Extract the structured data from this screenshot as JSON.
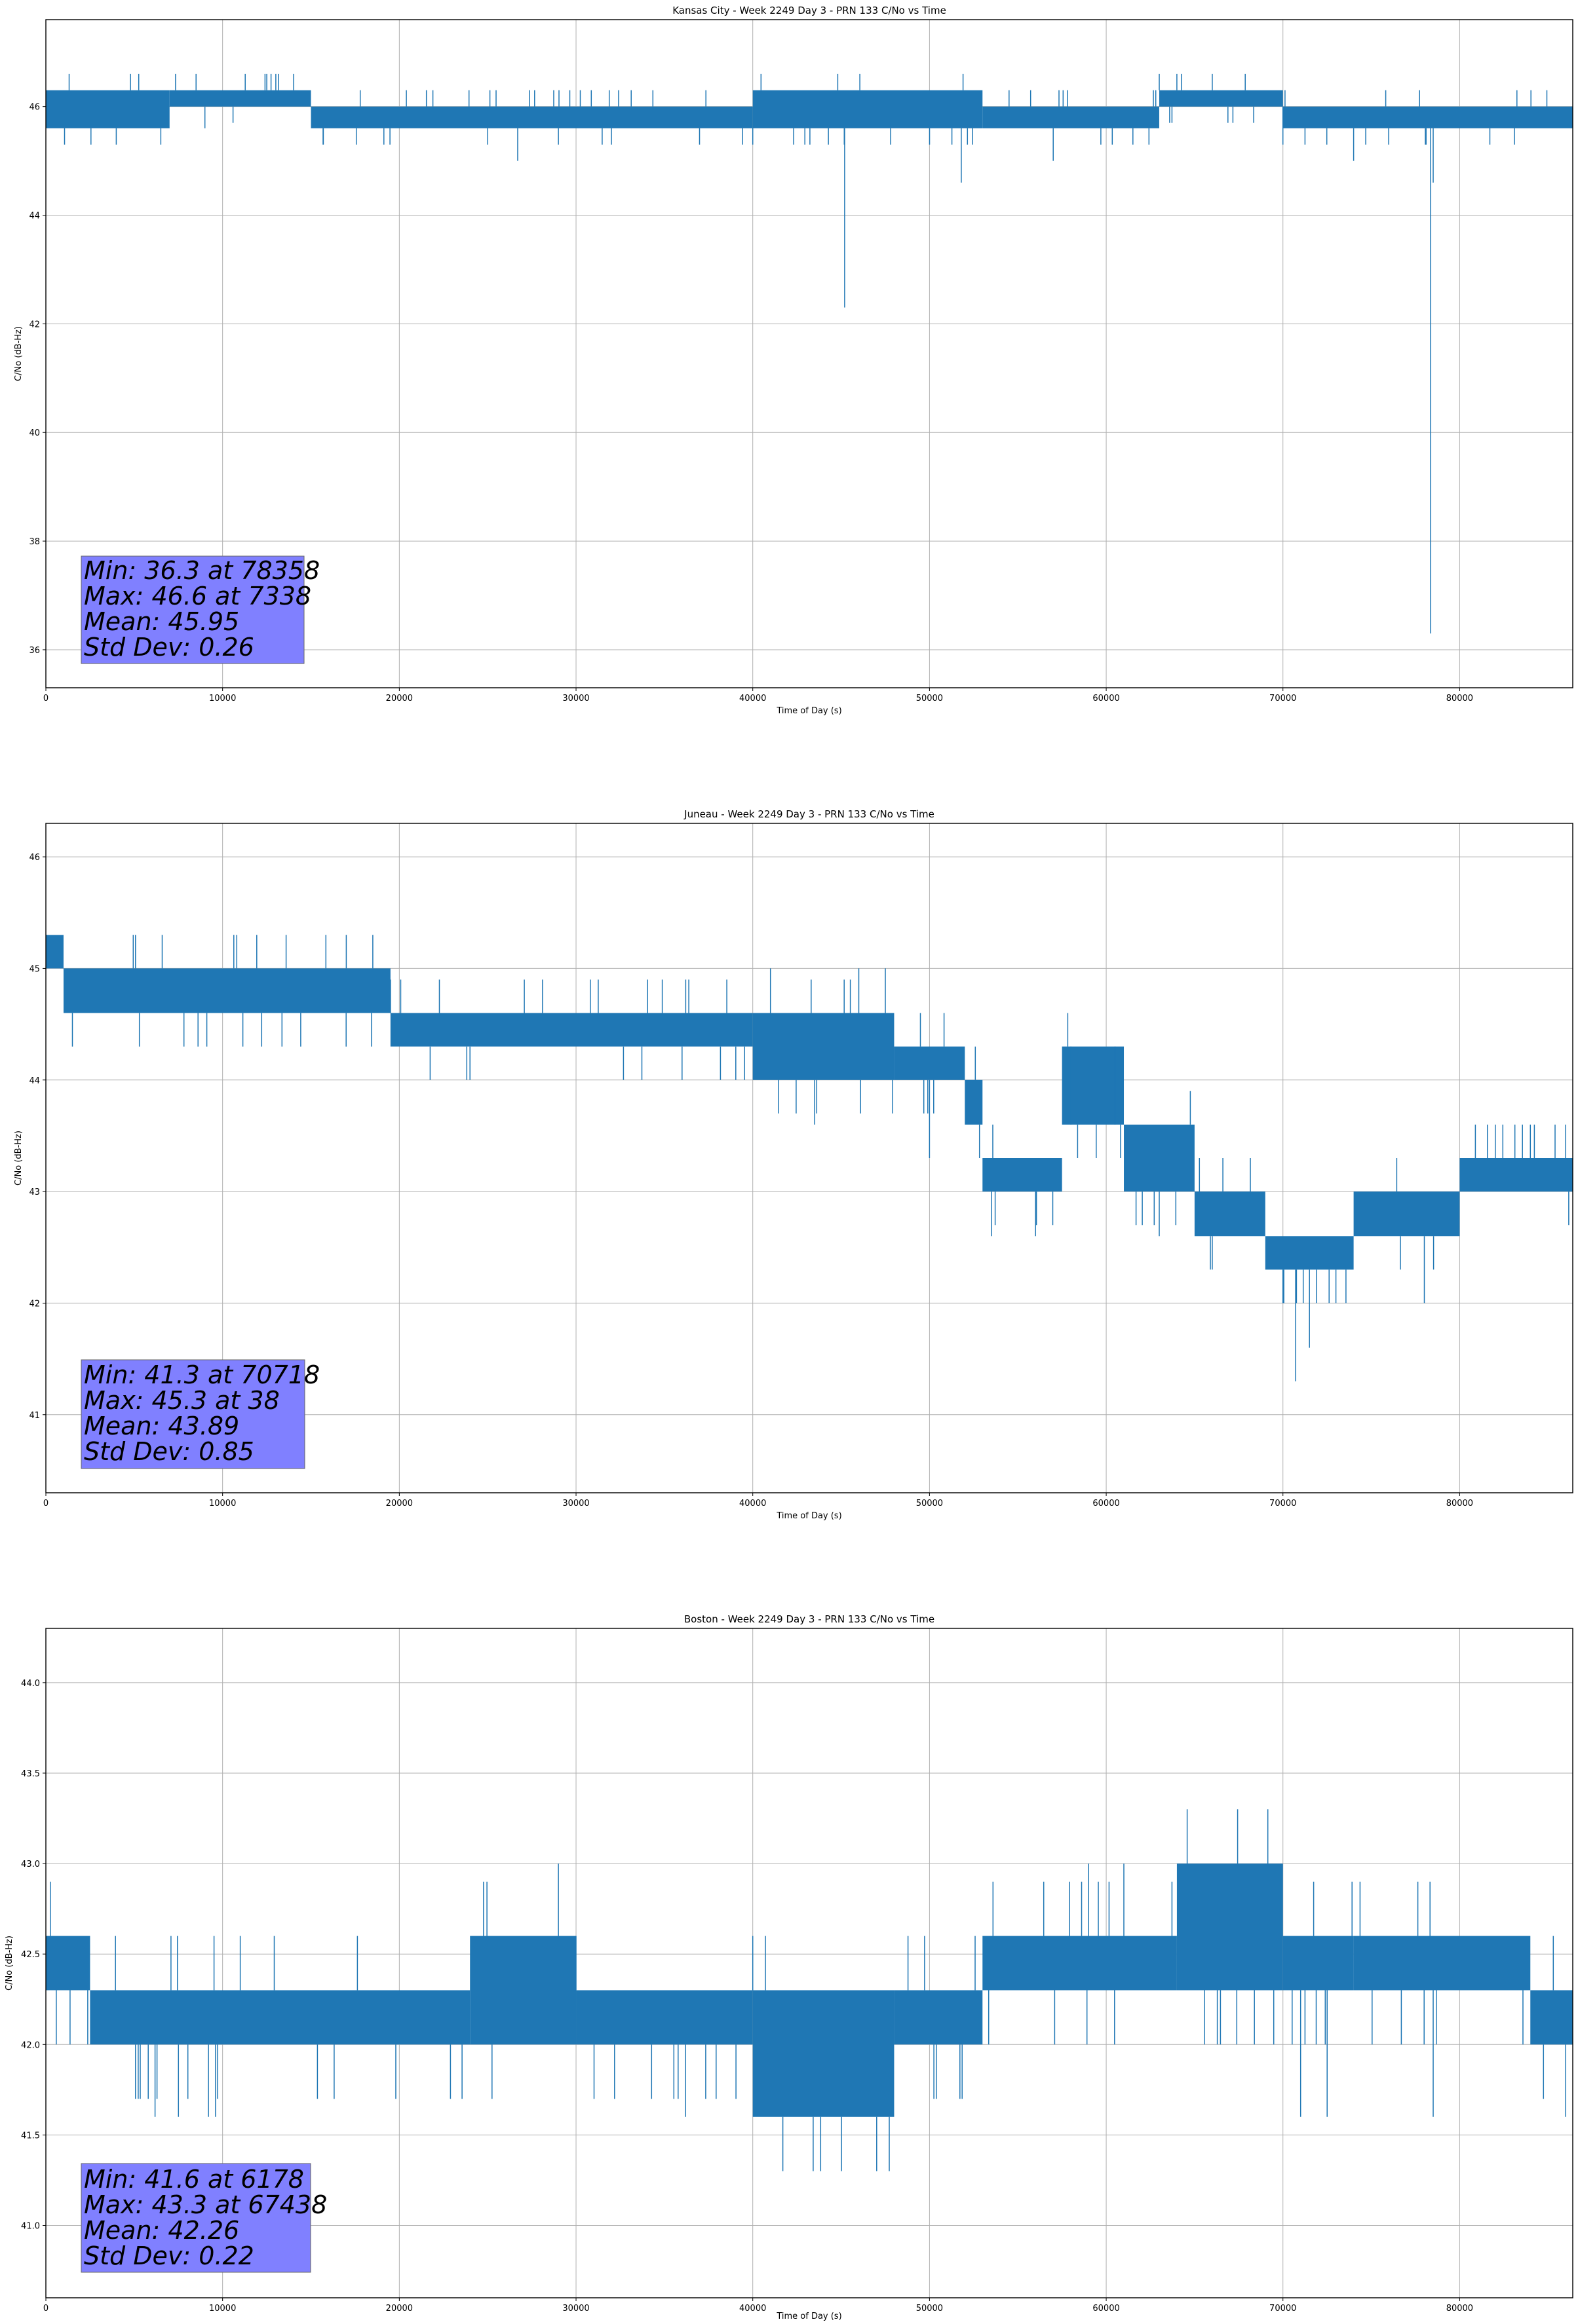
{
  "chart_data": [
    {
      "type": "line",
      "title": "Kansas City - Week 2249 Day 3 - PRN 133 C/No vs Time",
      "xlabel": "Time of Day (s)",
      "ylabel": "C/No (dB-Hz)",
      "xlim": [
        0,
        86400
      ],
      "ylim": [
        35.3,
        47.6
      ],
      "xticks": [
        0,
        10000,
        20000,
        30000,
        40000,
        50000,
        60000,
        70000,
        80000
      ],
      "yticks": [
        36,
        38,
        40,
        42,
        44,
        46
      ],
      "ytick_labels": [
        "36",
        "38",
        "40",
        "42",
        "44",
        "46"
      ],
      "grid": true,
      "series": [
        {
          "color": "#1f77b4",
          "band_levels": [
            45.6,
            46.3
          ],
          "band_segments": [
            {
              "x0": 0,
              "x1": 7000,
              "lo": 45.6,
              "hi": 46.3
            },
            {
              "x0": 7000,
              "x1": 15000,
              "lo": 46.0,
              "hi": 46.3
            },
            {
              "x0": 15000,
              "x1": 40000,
              "lo": 45.6,
              "hi": 46.0
            },
            {
              "x0": 40000,
              "x1": 53000,
              "lo": 45.6,
              "hi": 46.3
            },
            {
              "x0": 53000,
              "x1": 63000,
              "lo": 45.6,
              "hi": 46.0
            },
            {
              "x0": 63000,
              "x1": 70000,
              "lo": 46.0,
              "hi": 46.3
            },
            {
              "x0": 70000,
              "x1": 86400,
              "lo": 45.6,
              "hi": 46.0
            }
          ],
          "spikes": [
            [
              3000,
              45.6
            ],
            [
              7338,
              46.6
            ],
            [
              8500,
              46.6
            ],
            [
              9000,
              45.6
            ],
            [
              12500,
              46.6
            ],
            [
              15700,
              45.3
            ],
            [
              25000,
              45.3
            ],
            [
              26700,
              45.0
            ],
            [
              29000,
              45.3
            ],
            [
              45200,
              42.3
            ],
            [
              51800,
              44.6
            ],
            [
              57000,
              45.0
            ],
            [
              64000,
              46.6
            ],
            [
              66000,
              46.6
            ],
            [
              70000,
              45.3
            ],
            [
              74000,
              45.0
            ],
            [
              78100,
              45.3
            ],
            [
              78358,
              36.3
            ],
            [
              78500,
              44.6
            ]
          ]
        }
      ],
      "stats": [
        "Min: 36.3 at 78358",
        "Max: 46.6 at 7338",
        "Mean: 45.95",
        "Std Dev: 0.26"
      ]
    },
    {
      "type": "line",
      "title": "Juneau - Week 2249 Day 3 - PRN 133 C/No vs Time",
      "xlabel": "Time of Day (s)",
      "ylabel": "C/No (dB-Hz)",
      "xlim": [
        0,
        86400
      ],
      "ylim": [
        40.3,
        46.3
      ],
      "xticks": [
        0,
        10000,
        20000,
        30000,
        40000,
        50000,
        60000,
        70000,
        80000
      ],
      "yticks": [
        41,
        42,
        43,
        44,
        45,
        46
      ],
      "ytick_labels": [
        "41",
        "42",
        "43",
        "44",
        "45",
        "46"
      ],
      "grid": true,
      "series": [
        {
          "color": "#1f77b4",
          "band_segments": [
            {
              "x0": 0,
              "x1": 1000,
              "lo": 45.0,
              "hi": 45.3
            },
            {
              "x0": 1000,
              "x1": 19500,
              "lo": 44.6,
              "hi": 45.0
            },
            {
              "x0": 19500,
              "x1": 40000,
              "lo": 44.3,
              "hi": 44.6
            },
            {
              "x0": 40000,
              "x1": 48000,
              "lo": 44.0,
              "hi": 44.6
            },
            {
              "x0": 48000,
              "x1": 52000,
              "lo": 44.0,
              "hi": 44.3
            },
            {
              "x0": 52000,
              "x1": 53000,
              "lo": 43.6,
              "hi": 44.0
            },
            {
              "x0": 53000,
              "x1": 57500,
              "lo": 43.0,
              "hi": 43.3
            },
            {
              "x0": 57500,
              "x1": 61000,
              "lo": 43.6,
              "hi": 44.3
            },
            {
              "x0": 61000,
              "x1": 65000,
              "lo": 43.0,
              "hi": 43.6
            },
            {
              "x0": 65000,
              "x1": 69000,
              "lo": 42.6,
              "hi": 43.0
            },
            {
              "x0": 69000,
              "x1": 74000,
              "lo": 42.3,
              "hi": 42.6
            },
            {
              "x0": 74000,
              "x1": 80000,
              "lo": 42.6,
              "hi": 43.0
            },
            {
              "x0": 80000,
              "x1": 86400,
              "lo": 43.0,
              "hi": 43.3
            }
          ],
          "spikes": [
            [
              38,
              45.3
            ],
            [
              1500,
              44.3
            ],
            [
              10800,
              45.3
            ],
            [
              17000,
              45.3
            ],
            [
              18500,
              45.3
            ],
            [
              24000,
              44.0
            ],
            [
              36000,
              44.0
            ],
            [
              41000,
              45.0
            ],
            [
              43500,
              43.6
            ],
            [
              46000,
              45.0
            ],
            [
              47500,
              45.0
            ],
            [
              50000,
              43.3
            ],
            [
              53500,
              42.6
            ],
            [
              56000,
              42.6
            ],
            [
              58000,
              44.3
            ],
            [
              60500,
              44.3
            ],
            [
              63000,
              42.6
            ],
            [
              66000,
              42.3
            ],
            [
              70000,
              42.0
            ],
            [
              70718,
              41.3
            ],
            [
              71500,
              41.6
            ],
            [
              73000,
              42.0
            ],
            [
              78000,
              42.0
            ],
            [
              84000,
              43.6
            ],
            [
              86000,
              43.6
            ]
          ]
        }
      ],
      "stats": [
        "Min: 41.3 at 70718",
        "Max: 45.3 at 38",
        "Mean: 43.89",
        "Std Dev: 0.85"
      ]
    },
    {
      "type": "line",
      "title": "Boston - Week 2249 Day 3 - PRN 133 C/No vs Time",
      "xlabel": "Time of Day (s)",
      "ylabel": "C/No (dB-Hz)",
      "xlim": [
        0,
        86400
      ],
      "ylim": [
        40.6,
        44.3
      ],
      "xticks": [
        0,
        10000,
        20000,
        30000,
        40000,
        50000,
        60000,
        70000,
        80000
      ],
      "yticks": [
        41.0,
        41.5,
        42.0,
        42.5,
        43.0,
        43.5,
        44.0
      ],
      "ytick_labels": [
        "41.0",
        "41.5",
        "42.0",
        "42.5",
        "43.0",
        "43.5",
        "44.0"
      ],
      "grid": true,
      "series": [
        {
          "color": "#1f77b4",
          "band_segments": [
            {
              "x0": 0,
              "x1": 2500,
              "lo": 42.3,
              "hi": 42.6
            },
            {
              "x0": 2500,
              "x1": 24000,
              "lo": 42.0,
              "hi": 42.3
            },
            {
              "x0": 24000,
              "x1": 30000,
              "lo": 42.0,
              "hi": 42.6
            },
            {
              "x0": 30000,
              "x1": 40000,
              "lo": 42.0,
              "hi": 42.3
            },
            {
              "x0": 40000,
              "x1": 48000,
              "lo": 41.6,
              "hi": 42.3
            },
            {
              "x0": 48000,
              "x1": 53000,
              "lo": 42.0,
              "hi": 42.3
            },
            {
              "x0": 53000,
              "x1": 64000,
              "lo": 42.3,
              "hi": 42.6
            },
            {
              "x0": 64000,
              "x1": 70000,
              "lo": 42.3,
              "hi": 43.0
            },
            {
              "x0": 70000,
              "x1": 74000,
              "lo": 42.3,
              "hi": 42.6
            },
            {
              "x0": 74000,
              "x1": 84000,
              "lo": 42.3,
              "hi": 42.6
            },
            {
              "x0": 84000,
              "x1": 86400,
              "lo": 42.0,
              "hi": 42.3
            }
          ],
          "spikes": [
            [
              6178,
              41.6
            ],
            [
              7500,
              41.6
            ],
            [
              9200,
              41.6
            ],
            [
              9600,
              41.6
            ],
            [
              29000,
              43.0
            ],
            [
              36200,
              41.6
            ],
            [
              41000,
              41.6
            ],
            [
              47000,
              41.6
            ],
            [
              59000,
              43.0
            ],
            [
              61000,
              43.0
            ],
            [
              67438,
              43.3
            ],
            [
              71000,
              41.6
            ],
            [
              72500,
              41.6
            ],
            [
              78500,
              41.6
            ],
            [
              86000,
              41.6
            ]
          ]
        }
      ],
      "stats": [
        "Min: 41.6 at 6178",
        "Max: 43.3 at 67438",
        "Mean: 42.26",
        "Std Dev: 0.22"
      ]
    }
  ]
}
